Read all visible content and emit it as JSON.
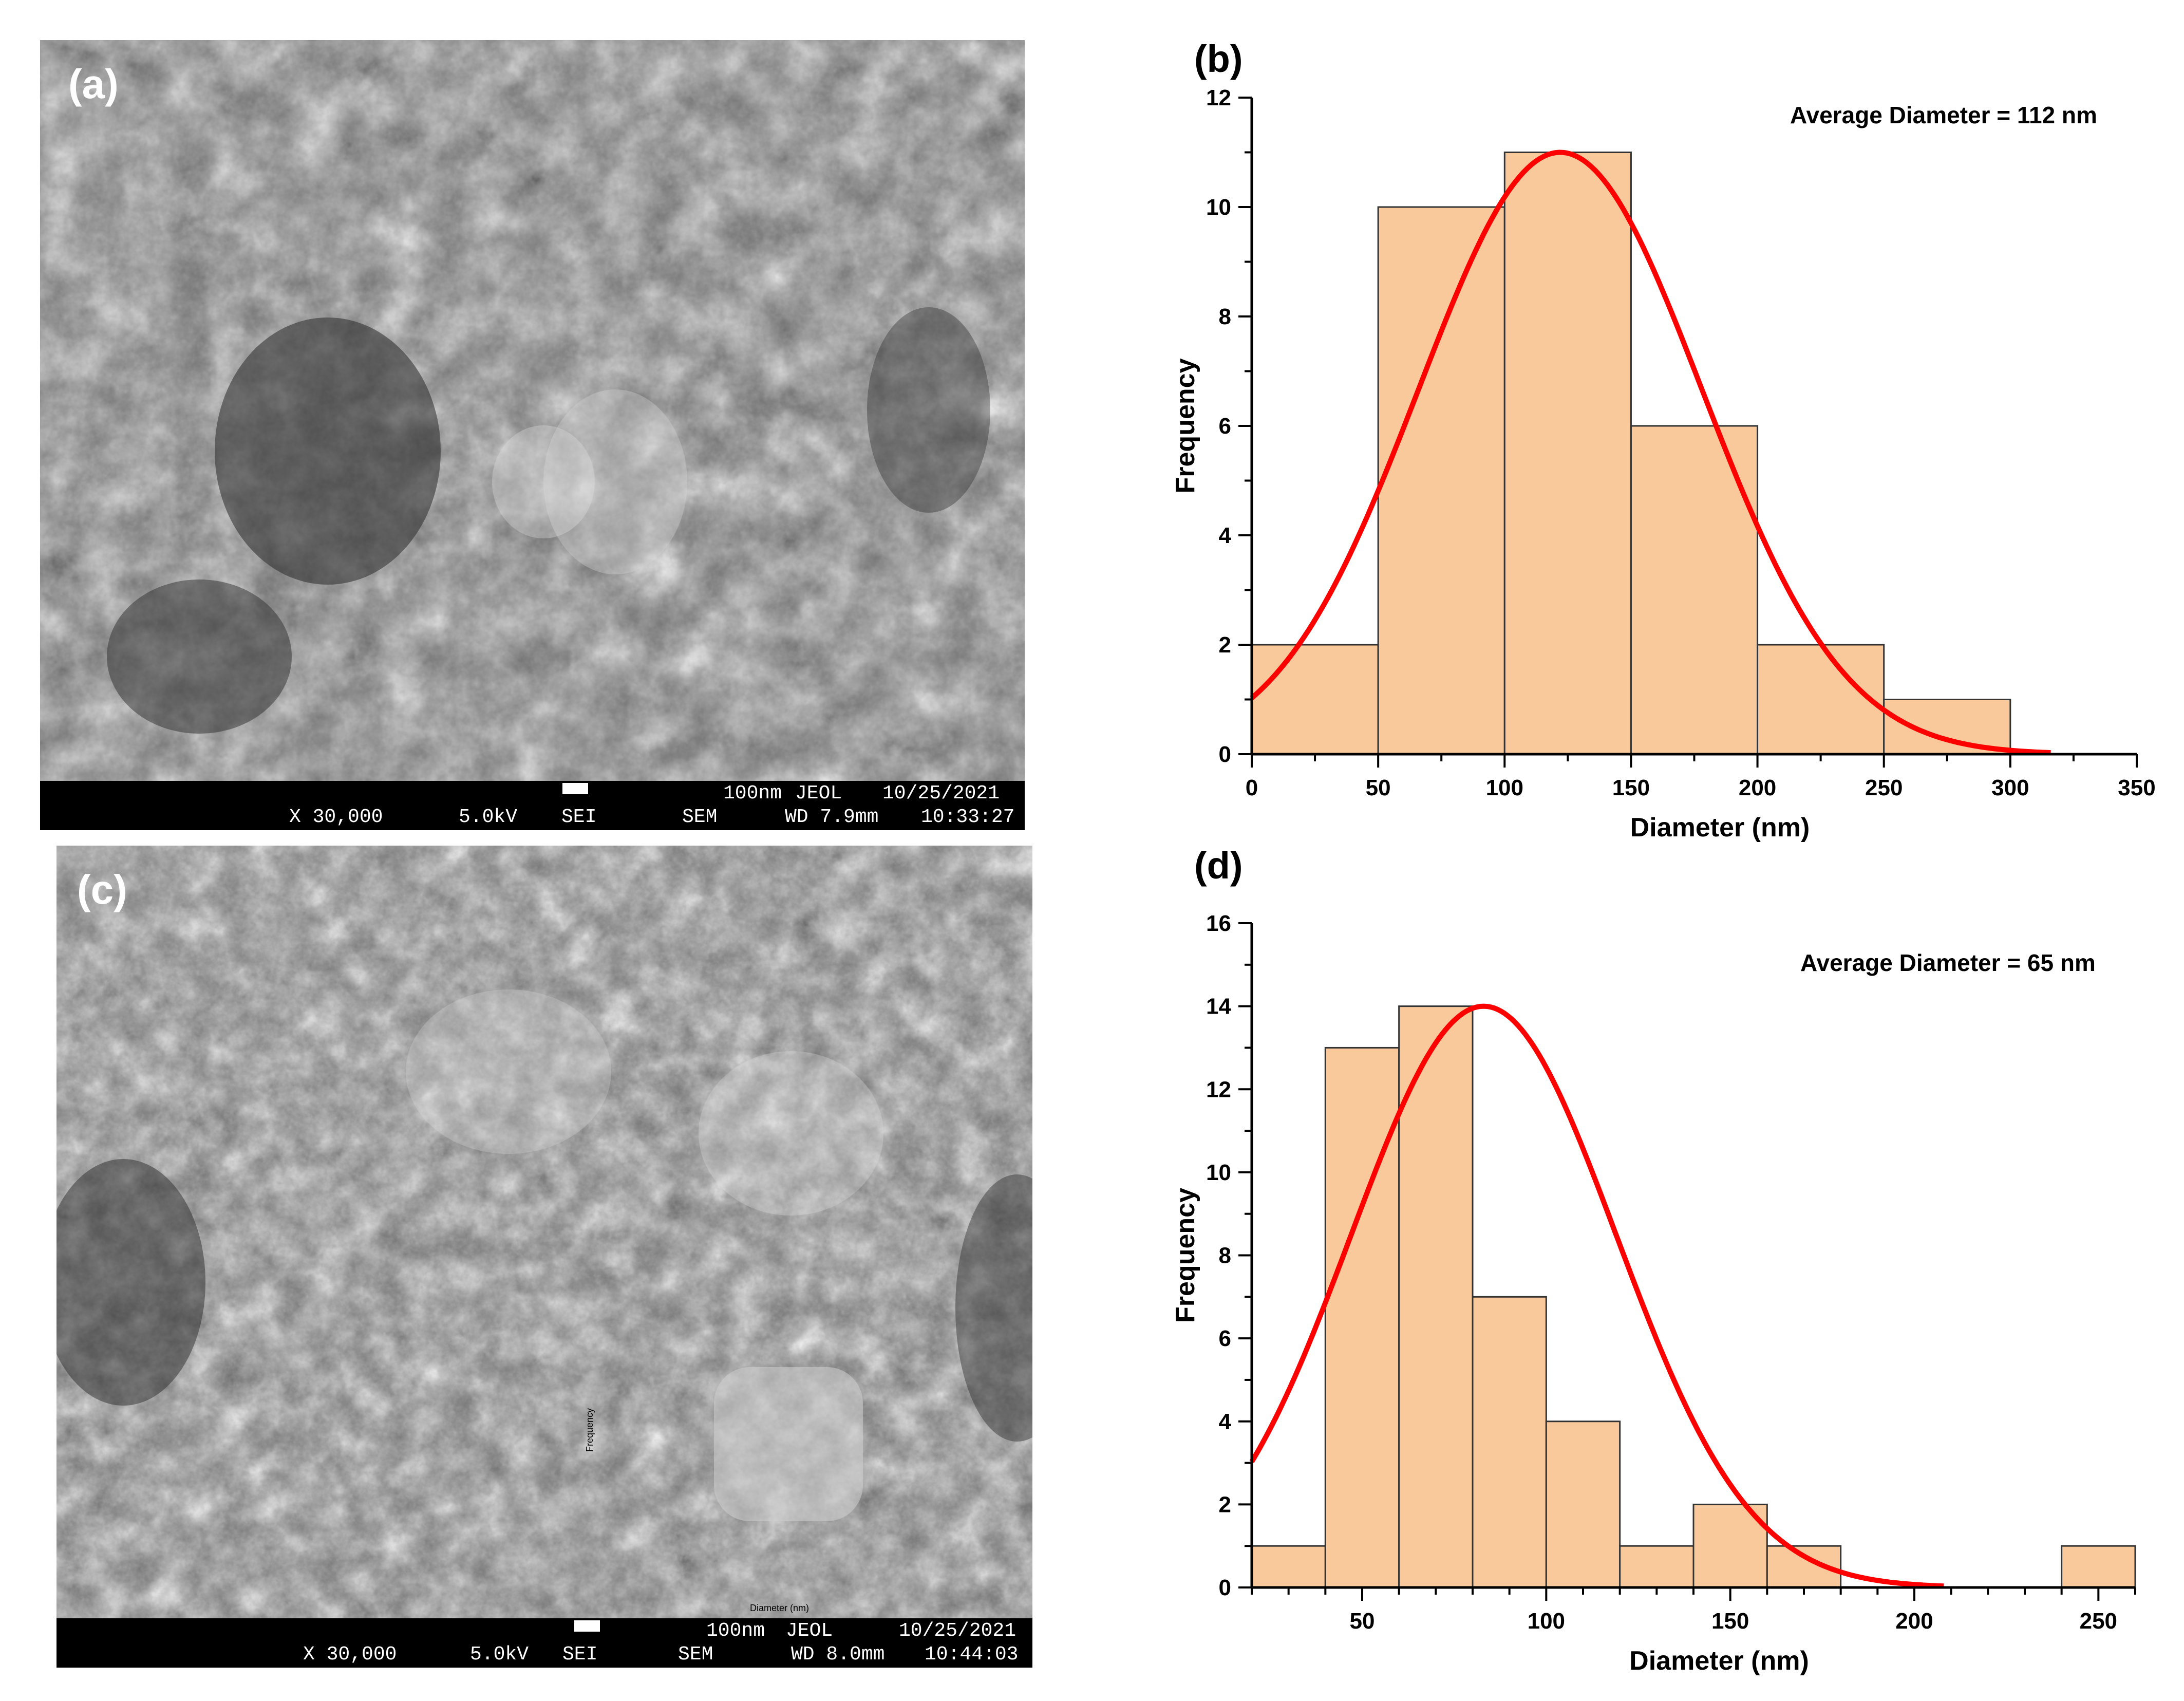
{
  "figure": {
    "panels": {
      "a": {
        "label": "(a)",
        "sem": {
          "magnification": "X 30,000",
          "voltage": "5.0kV",
          "detector": "SEI",
          "mode": "SEM",
          "scale": "100nm",
          "maker": "JEOL",
          "working_distance": "WD 7.9mm",
          "date": "10/25/2021",
          "time": "10:33:27"
        }
      },
      "c": {
        "label": "(c)",
        "sem": {
          "magnification": "X 30,000",
          "voltage": "5.0kV",
          "detector": "SEI",
          "mode": "SEM",
          "scale": "100nm",
          "maker": "JEOL",
          "working_distance": "WD 8.0mm",
          "date": "10/25/2021",
          "time": "10:44:03"
        },
        "overlay_texts": {
          "frequency": "Frequency",
          "diameter": "Diameter (nm)"
        }
      }
    }
  },
  "chart_data": [
    {
      "panel": "(b)",
      "type": "bar",
      "subtype": "histogram",
      "annotation": "Average Diameter = 112 nm",
      "xlabel": "Diameter (nm)",
      "ylabel": "Frequency",
      "xlim": [
        0,
        350
      ],
      "ylim": [
        0,
        12
      ],
      "xticks": [
        0,
        50,
        100,
        150,
        200,
        250,
        300,
        350
      ],
      "yticks": [
        0,
        2,
        4,
        6,
        8,
        10,
        12
      ],
      "bins": [
        [
          0,
          50
        ],
        [
          50,
          100
        ],
        [
          100,
          150
        ],
        [
          150,
          200
        ],
        [
          200,
          250
        ],
        [
          250,
          300
        ]
      ],
      "values": [
        2,
        10,
        11,
        6,
        2,
        1
      ],
      "fit": {
        "type": "gaussian",
        "mean": 122,
        "amplitude": 11,
        "sigma": 56,
        "x_range": [
          0,
          316
        ]
      },
      "colors": {
        "bar": "#f9c89b",
        "fit": "#ff0000"
      }
    },
    {
      "panel": "(d)",
      "type": "bar",
      "subtype": "histogram",
      "annotation": "Average Diameter = 65 nm",
      "xlabel": "Diameter (nm)",
      "ylabel": "Frequency",
      "xlim": [
        20,
        260
      ],
      "ylim": [
        0,
        16
      ],
      "xticks": [
        50,
        100,
        150,
        200,
        250
      ],
      "yticks": [
        0,
        2,
        4,
        6,
        8,
        10,
        12,
        14,
        16
      ],
      "bins": [
        [
          20,
          40
        ],
        [
          40,
          60
        ],
        [
          60,
          80
        ],
        [
          80,
          100
        ],
        [
          100,
          120
        ],
        [
          120,
          140
        ],
        [
          140,
          160
        ],
        [
          160,
          180
        ],
        [
          240,
          260
        ]
      ],
      "values": [
        1,
        13,
        14,
        7,
        4,
        1,
        2,
        1,
        1
      ],
      "fit": {
        "type": "gaussian",
        "mean": 83,
        "amplitude": 14,
        "sigma": 36,
        "x_range": [
          20,
          208
        ]
      },
      "colors": {
        "bar": "#f9c89b",
        "fit": "#ff0000"
      }
    }
  ]
}
